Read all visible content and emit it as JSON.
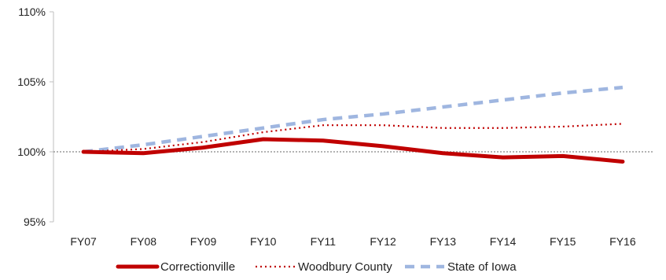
{
  "chart_data": {
    "type": "line",
    "title": "",
    "xlabel": "",
    "ylabel": "",
    "categories": [
      "FY07",
      "FY08",
      "FY09",
      "FY10",
      "FY11",
      "FY12",
      "FY13",
      "FY14",
      "FY15",
      "FY16"
    ],
    "y_ticks": [
      "95%",
      "100%",
      "105%",
      "110%"
    ],
    "ylim": [
      95,
      110
    ],
    "grid": false,
    "reference_line": 100,
    "legend_position": "bottom",
    "series": [
      {
        "name": "Correctionville",
        "values": [
          100.0,
          99.9,
          100.3,
          100.9,
          100.8,
          100.4,
          99.9,
          99.6,
          99.7,
          99.3
        ],
        "color": "#c00000",
        "style": "solid"
      },
      {
        "name": "Woodbury County",
        "values": [
          100.0,
          100.2,
          100.7,
          101.4,
          101.9,
          101.9,
          101.7,
          101.7,
          101.8,
          102.0
        ],
        "color": "#c00000",
        "style": "dotted"
      },
      {
        "name": "State of Iowa",
        "values": [
          100.0,
          100.5,
          101.1,
          101.7,
          102.3,
          102.7,
          103.2,
          103.7,
          104.2,
          104.6
        ],
        "color": "#9fb6e0",
        "style": "dashed"
      }
    ]
  }
}
